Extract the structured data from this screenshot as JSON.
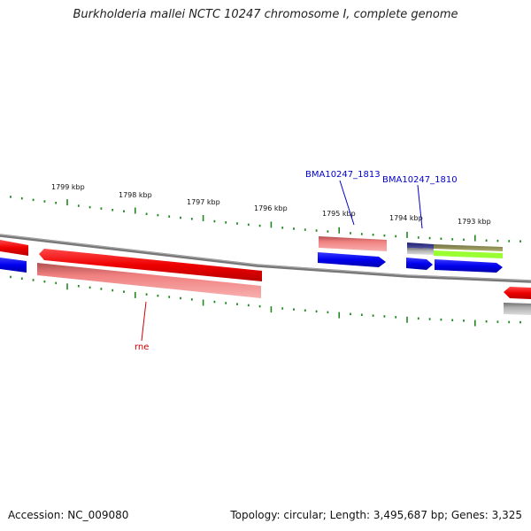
{
  "title": "Burkholderia mallei NCTC 10247 chromosome I, complete genome",
  "footer": {
    "accession": "Accession: NC_009080",
    "summary": "Topology: circular; Length: 3,495,687 bp; Genes: 3,325"
  },
  "ruler": {
    "unit": "kbp",
    "ticks": [
      "1799 kbp",
      "1798 kbp",
      "1797 kbp",
      "1796 kbp",
      "1795 kbp",
      "1794 kbp",
      "1793 kbp"
    ]
  },
  "gene_labels": [
    {
      "text": "BMA10247_1813",
      "color": "#0000cc"
    },
    {
      "text": "BMA10247_1810",
      "color": "#0000cc"
    },
    {
      "text": "rne",
      "color": "#cc0000"
    }
  ],
  "colors": {
    "forward_cds": "#ff0000",
    "reverse_cds": "#0000ee",
    "forward_rna": "#f08080",
    "pseudogene": "#888888",
    "misc_feature": "#a0a060",
    "highlight": "#99ff33",
    "ruler": "#228822",
    "backbone": "#777777"
  }
}
